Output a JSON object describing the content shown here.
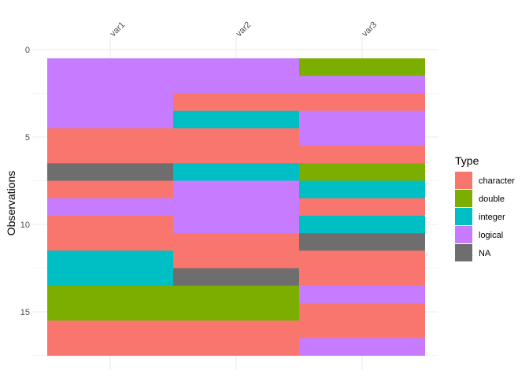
{
  "chart_data": {
    "type": "heatmap",
    "title": "",
    "xlabel": "",
    "ylabel": "Observations",
    "columns": [
      "var1",
      "var2",
      "var3"
    ],
    "y_ticks": [
      0,
      5,
      10,
      15
    ],
    "ylim": [
      0.5,
      17.5
    ],
    "grid": true,
    "legend": {
      "title": "Type",
      "placement": "right",
      "entries": [
        "character",
        "double",
        "integer",
        "logical",
        "NA"
      ]
    },
    "colors": {
      "character": "#F8766D",
      "double": "#7CAE00",
      "integer": "#00BFC4",
      "logical": "#C77CFF",
      "NA": "#6E6E6E"
    },
    "cells": {
      "var1": [
        "logical",
        "logical",
        "logical",
        "logical",
        "character",
        "character",
        "NA",
        "character",
        "logical",
        "character",
        "character",
        "integer",
        "integer",
        "double",
        "double",
        "character",
        "character"
      ],
      "var2": [
        "logical",
        "logical",
        "character",
        "integer",
        "character",
        "character",
        "integer",
        "logical",
        "logical",
        "logical",
        "character",
        "character",
        "NA",
        "double",
        "double",
        "character",
        "character"
      ],
      "var3": [
        "double",
        "logical",
        "character",
        "logical",
        "logical",
        "character",
        "double",
        "integer",
        "character",
        "integer",
        "NA",
        "character",
        "character",
        "logical",
        "character",
        "character",
        "logical"
      ]
    }
  }
}
